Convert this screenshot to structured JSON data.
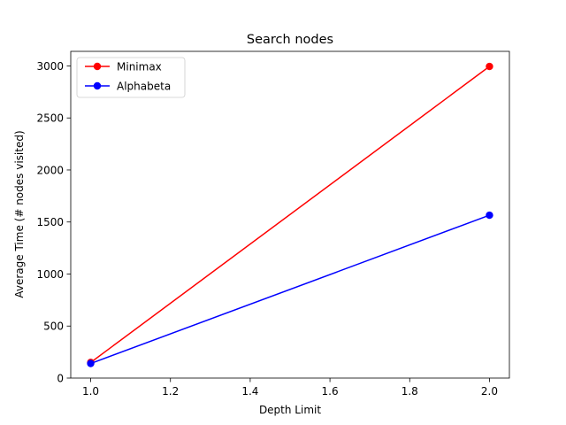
{
  "chart_data": {
    "type": "line",
    "title": "Search nodes",
    "xlabel": "Depth Limit",
    "ylabel": "Average Time (# nodes visited)",
    "xlim": [
      0.95,
      2.05
    ],
    "ylim": [
      0,
      3140
    ],
    "xticks": [
      1.0,
      1.2,
      1.4,
      1.6,
      1.8,
      2.0
    ],
    "xtick_labels": [
      "1.0",
      "1.2",
      "1.4",
      "1.6",
      "1.8",
      "2.0"
    ],
    "yticks": [
      0,
      500,
      1000,
      1500,
      2000,
      2500,
      3000
    ],
    "ytick_labels": [
      "0",
      "500",
      "1000",
      "1500",
      "2000",
      "2500",
      "3000"
    ],
    "legend_position": "top-left",
    "grid": false,
    "series": [
      {
        "name": "Minimax",
        "color": "#ff0000",
        "x": [
          1,
          2
        ],
        "y": [
          150,
          2995
        ]
      },
      {
        "name": "Alphabeta",
        "color": "#0000ff",
        "x": [
          1,
          2
        ],
        "y": [
          140,
          1565
        ]
      }
    ]
  }
}
